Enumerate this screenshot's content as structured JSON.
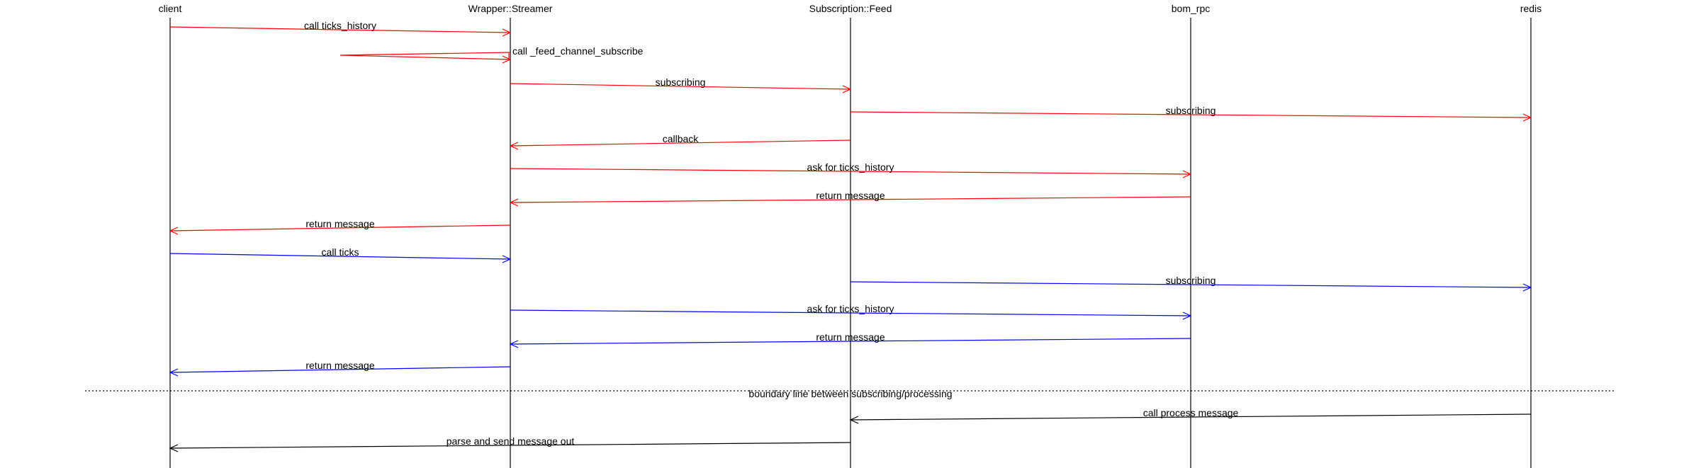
{
  "actors": [
    {
      "id": "client",
      "label": "client"
    },
    {
      "id": "streamer",
      "label": "Wrapper::Streamer"
    },
    {
      "id": "feed",
      "label": "Subscription::Feed"
    },
    {
      "id": "rpc",
      "label": "bom_rpc"
    },
    {
      "id": "redis",
      "label": "redis"
    }
  ],
  "colors": {
    "red": "#ff0000",
    "blue": "#0000ff",
    "black": "#000000"
  },
  "boundary": {
    "label": "boundary line between subscribing/processing"
  },
  "messages": [
    {
      "from": "client",
      "to": "streamer",
      "label": "call ticks_history",
      "color": "red"
    },
    {
      "from": "streamer",
      "to": "streamer",
      "label": "call _feed_channel_subscribe",
      "color": "red",
      "self": true
    },
    {
      "from": "streamer",
      "to": "feed",
      "label": "subscribing",
      "color": "red"
    },
    {
      "from": "feed",
      "to": "redis",
      "label": "subscribing",
      "color": "red"
    },
    {
      "from": "feed",
      "to": "streamer",
      "label": "callback",
      "color": "red"
    },
    {
      "from": "streamer",
      "to": "rpc",
      "label": "ask for ticks_history",
      "color": "red"
    },
    {
      "from": "rpc",
      "to": "streamer",
      "label": "return message",
      "color": "red"
    },
    {
      "from": "streamer",
      "to": "client",
      "label": "return message",
      "color": "red"
    },
    {
      "from": "client",
      "to": "streamer",
      "label": "call ticks",
      "color": "blue"
    },
    {
      "from": "feed",
      "to": "redis",
      "label": "subscribing",
      "color": "blue"
    },
    {
      "from": "streamer",
      "to": "rpc",
      "label": "ask for ticks_history",
      "color": "blue"
    },
    {
      "from": "rpc",
      "to": "streamer",
      "label": "return message",
      "color": "blue"
    },
    {
      "from": "streamer",
      "to": "client",
      "label": "return message",
      "color": "blue"
    },
    {
      "from": "redis",
      "to": "feed",
      "label": "call process message",
      "color": "black"
    },
    {
      "from": "feed",
      "to": "client",
      "label": "parse and send message out",
      "color": "black"
    }
  ]
}
